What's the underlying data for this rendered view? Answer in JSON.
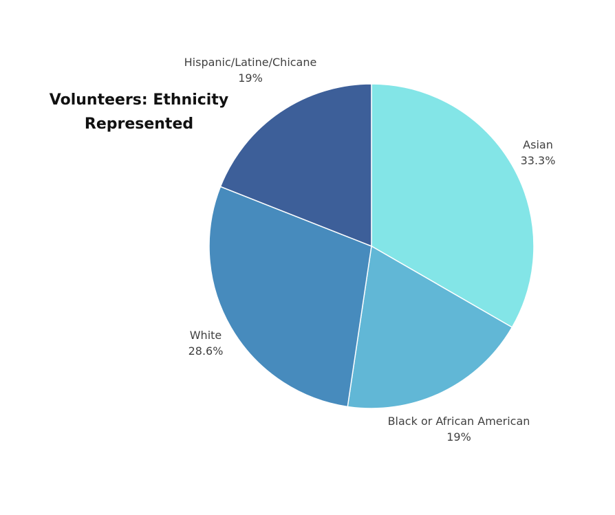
{
  "chart_data": {
    "type": "pie",
    "title_lines": [
      "Volunteers: Ethnicity",
      "Represented"
    ],
    "slices": [
      {
        "name": "Asian",
        "value": 33.3,
        "label": "33.3%",
        "color": "#83e5e7"
      },
      {
        "name": "Black or African American",
        "value": 19.0,
        "label": "19%",
        "color": "#61b7d6"
      },
      {
        "name": "White",
        "value": 28.6,
        "label": "28.6%",
        "color": "#478bbd"
      },
      {
        "name": "Hispanic/Latine/Chicane",
        "value": 19.0,
        "label": "19%",
        "color": "#3d5f99"
      }
    ],
    "start": "top",
    "direction": "clockwise",
    "legend": "none"
  }
}
